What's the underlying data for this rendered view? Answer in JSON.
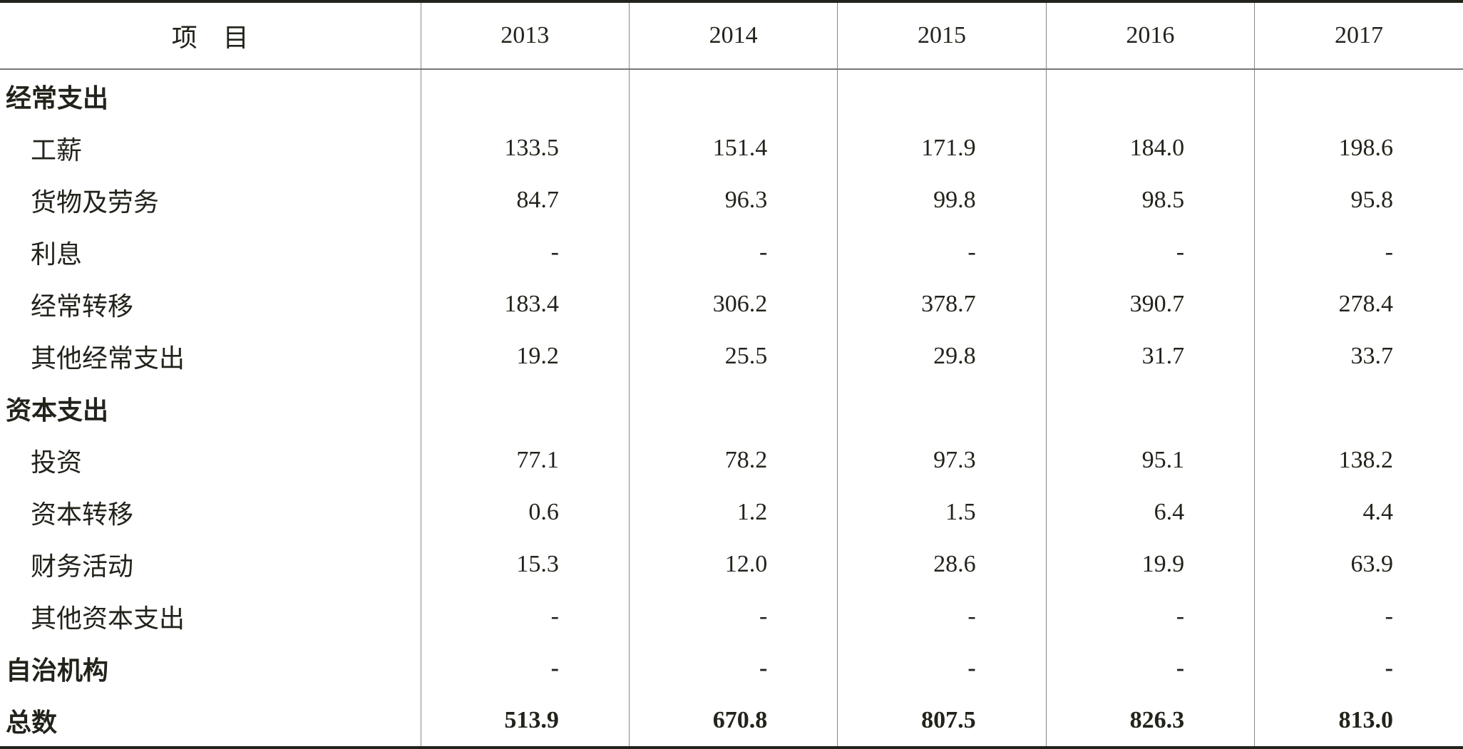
{
  "table": {
    "header": [
      "项　目",
      "2013",
      "2014",
      "2015",
      "2016",
      "2017"
    ],
    "rows": [
      {
        "cells": [
          "经常支出"
        ],
        "bold": true
      },
      {
        "cells": [
          "工薪",
          "133.5",
          "151.4",
          "171.9",
          "184.0",
          "198.6"
        ]
      },
      {
        "cells": [
          "货物及劳务",
          "84.7",
          "96.3",
          "99.8",
          "98.5",
          "95.8"
        ]
      },
      {
        "cells": [
          "利息",
          "-",
          "-",
          "-",
          "-",
          "-"
        ]
      },
      {
        "cells": [
          "经常转移",
          "183.4",
          "306.2",
          "378.7",
          "390.7",
          "278.4"
        ]
      },
      {
        "cells": [
          "其他经常支出",
          "19.2",
          "25.5",
          "29.8",
          "31.7",
          "33.7"
        ]
      },
      {
        "cells": [
          "资本支出"
        ],
        "bold": true
      },
      {
        "cells": [
          "投资",
          "77.1",
          "78.2",
          "97.3",
          "95.1",
          "138.2"
        ]
      },
      {
        "cells": [
          "资本转移",
          "0.6",
          "1.2",
          "1.5",
          "6.4",
          "4.4"
        ]
      },
      {
        "cells": [
          "财务活动",
          "15.3",
          "12.0",
          "28.6",
          "19.9",
          "63.9"
        ]
      },
      {
        "cells": [
          "其他资本支出",
          "-",
          "-",
          "-",
          "-",
          "-"
        ]
      },
      {
        "cells": [
          "自治机构",
          "-",
          "-",
          "-",
          "-",
          "-"
        ],
        "bold": true
      },
      {
        "cells": [
          "总数",
          "513.9",
          "670.8",
          "807.5",
          "826.3",
          "813.0"
        ],
        "bold": true
      }
    ]
  }
}
